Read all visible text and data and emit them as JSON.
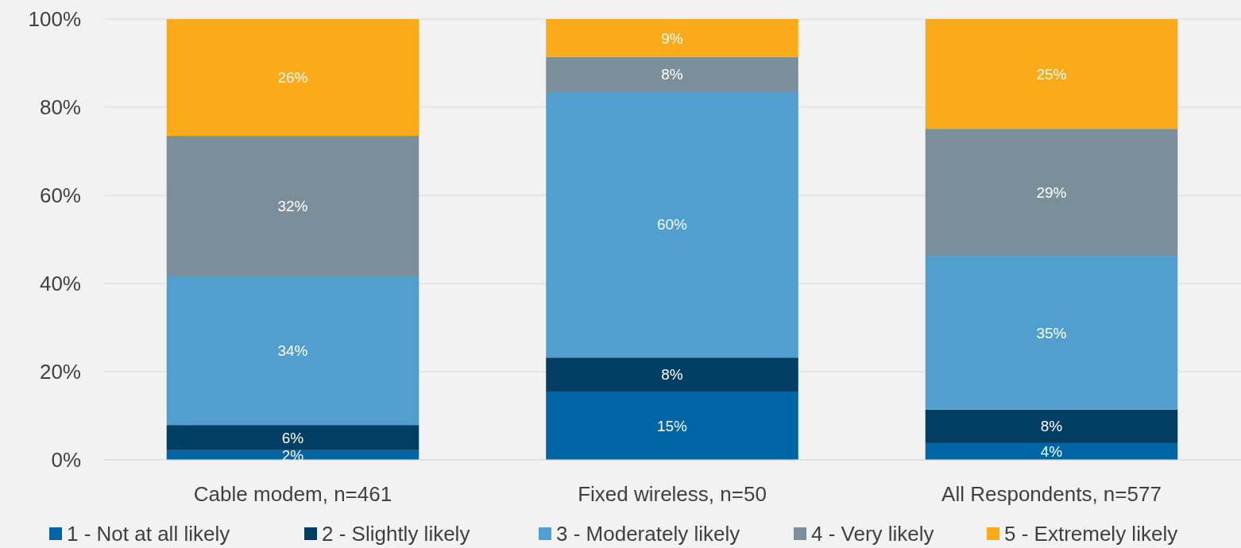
{
  "chart_data": {
    "type": "bar",
    "stacked": true,
    "categories": [
      "Cable modem, n=461",
      "Fixed wireless, n=50",
      "All Respondents, n=577"
    ],
    "ylim": [
      0,
      100
    ],
    "yticks": [
      {
        "value": 0,
        "label": "0%"
      },
      {
        "value": 20,
        "label": "20%"
      },
      {
        "value": 40,
        "label": "40%"
      },
      {
        "value": 60,
        "label": "60%"
      },
      {
        "value": 80,
        "label": "80%"
      },
      {
        "value": 100,
        "label": "100%"
      }
    ],
    "grid": "y",
    "legend": "bottom",
    "series": [
      {
        "name": "1 - Not at all likely",
        "color": "#0065a4",
        "values": [
          2.2,
          15.5,
          3.8
        ],
        "value_labels": [
          "2%",
          "15%",
          "4%"
        ]
      },
      {
        "name": "2 - Slightly likely",
        "color": "#003f63",
        "values": [
          5.7,
          7.7,
          7.6
        ],
        "value_labels": [
          "6%",
          "8%",
          "8%"
        ]
      },
      {
        "name": "3 - Moderately likely",
        "color": "#519fcf",
        "values": [
          33.9,
          60.4,
          34.9
        ],
        "value_labels": [
          "34%",
          "60%",
          "35%"
        ]
      },
      {
        "name": "4 - Very likely",
        "color": "#7a8f99",
        "values": [
          31.7,
          7.8,
          28.8
        ],
        "value_labels": [
          "32%",
          "8%",
          "29%"
        ]
      },
      {
        "name": "5 - Extremely likely",
        "color": "#fbaa19",
        "values": [
          26.5,
          8.6,
          24.9
        ],
        "value_labels": [
          "26%",
          "9%",
          "25%"
        ]
      }
    ]
  }
}
